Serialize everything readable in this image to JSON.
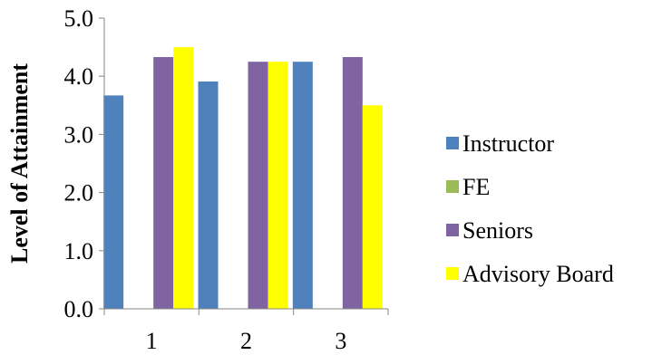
{
  "chart_data": {
    "type": "bar",
    "title": "",
    "xlabel": "",
    "ylabel": "Level of Attainment",
    "categories": [
      "1",
      "2",
      "3"
    ],
    "ylim": [
      0,
      5
    ],
    "yticks": [
      0,
      1,
      2,
      3,
      4,
      5
    ],
    "ytick_labels": [
      "0.0",
      "1.0",
      "2.0",
      "3.0",
      "4.0",
      "5.0"
    ],
    "grid": false,
    "legend_position": "right",
    "series": [
      {
        "name": "Instructor",
        "color": "#4f81bd",
        "values": [
          3.67,
          3.91,
          4.25
        ]
      },
      {
        "name": "FE",
        "color": "#9bbb59",
        "values": [
          null,
          null,
          null
        ]
      },
      {
        "name": "Seniors",
        "color": "#8064a2",
        "values": [
          4.33,
          4.25,
          4.33
        ]
      },
      {
        "name": "Advisory Board",
        "color": "#ffff00",
        "values": [
          4.5,
          4.25,
          3.5
        ]
      }
    ]
  }
}
